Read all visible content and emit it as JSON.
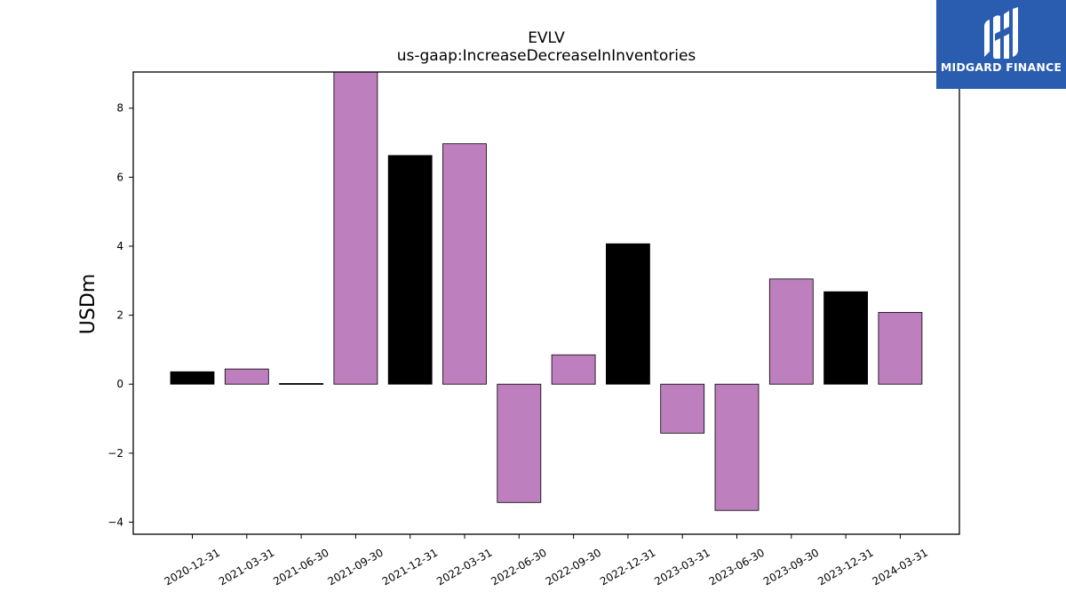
{
  "brand": {
    "name": "MIDGARD FINANCE",
    "logo_icon": "midgard-m-logo-icon",
    "background_color": "#2a5db0"
  },
  "chart_data": {
    "type": "bar",
    "title": "EVLV",
    "subtitle": "us-gaap:IncreaseDecreaseInInventories",
    "ylabel": "USDm",
    "xlabel": "",
    "ylim": [
      -4.35,
      9.05
    ],
    "yticks": [
      -4,
      -2,
      0,
      2,
      4,
      6,
      8
    ],
    "grid": false,
    "legend": "none",
    "colors": {
      "positive_alt": "#000000",
      "other": "#bd7fbd",
      "edge": "#000000"
    },
    "categories": [
      "2020-12-31",
      "2021-03-31",
      "2021-06-30",
      "2021-09-30",
      "2021-12-31",
      "2022-03-31",
      "2022-06-30",
      "2022-09-30",
      "2022-12-31",
      "2023-03-31",
      "2023-06-30",
      "2023-09-30",
      "2023-12-31",
      "2024-03-31"
    ],
    "values": [
      0.36,
      0.44,
      0.02,
      9.1,
      6.63,
      6.97,
      -3.43,
      0.85,
      4.07,
      -1.42,
      -3.66,
      3.05,
      2.68,
      2.08
    ],
    "bar_colors": [
      "#000000",
      "#bd7fbd",
      "#000000",
      "#bd7fbd",
      "#000000",
      "#bd7fbd",
      "#bd7fbd",
      "#bd7fbd",
      "#000000",
      "#bd7fbd",
      "#bd7fbd",
      "#bd7fbd",
      "#000000",
      "#bd7fbd"
    ]
  }
}
